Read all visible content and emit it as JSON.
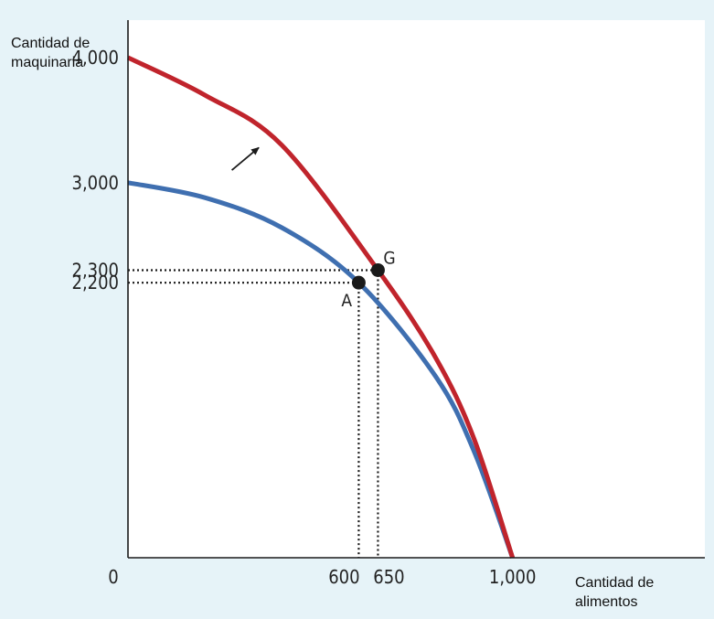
{
  "chart_data": {
    "type": "line",
    "title": "",
    "xlabel": "Cantidad de alimentos",
    "ylabel": "Cantidad de maquinaria",
    "xlim": [
      0,
      1500
    ],
    "ylim": [
      0,
      4300
    ],
    "x_ticks": [
      {
        "value": 0,
        "label": "0"
      },
      {
        "value": 600,
        "label": "600"
      },
      {
        "value": 650,
        "label": "650"
      },
      {
        "value": 1000,
        "label": "1,000"
      }
    ],
    "y_ticks": [
      {
        "value": 4000,
        "label": "4,000"
      },
      {
        "value": 3000,
        "label": "3,000"
      },
      {
        "value": 2300,
        "label": "2,300"
      },
      {
        "value": 2200,
        "label": "2,200"
      }
    ],
    "grid": false,
    "legend": "none",
    "series": [
      {
        "color": "#3f6fb0",
        "x": [
          0,
          200,
          400,
          600,
          800,
          900,
          1000
        ],
        "y": [
          3000,
          2880,
          2640,
          2200,
          1450,
          850,
          0
        ]
      },
      {
        "color": "#c0242c",
        "x": [
          0,
          200,
          400,
          650,
          800,
          900,
          1000
        ],
        "y": [
          4000,
          3700,
          3300,
          2300,
          1600,
          950,
          0
        ]
      }
    ],
    "points": [
      {
        "label": "A",
        "x": 600,
        "y": 2200
      },
      {
        "label": "G",
        "x": 650,
        "y": 2300
      }
    ],
    "annotations": [
      {
        "type": "arrow",
        "meaning": "shift-outward",
        "from": [
          270,
          3100
        ],
        "to": [
          340,
          3280
        ]
      }
    ]
  }
}
